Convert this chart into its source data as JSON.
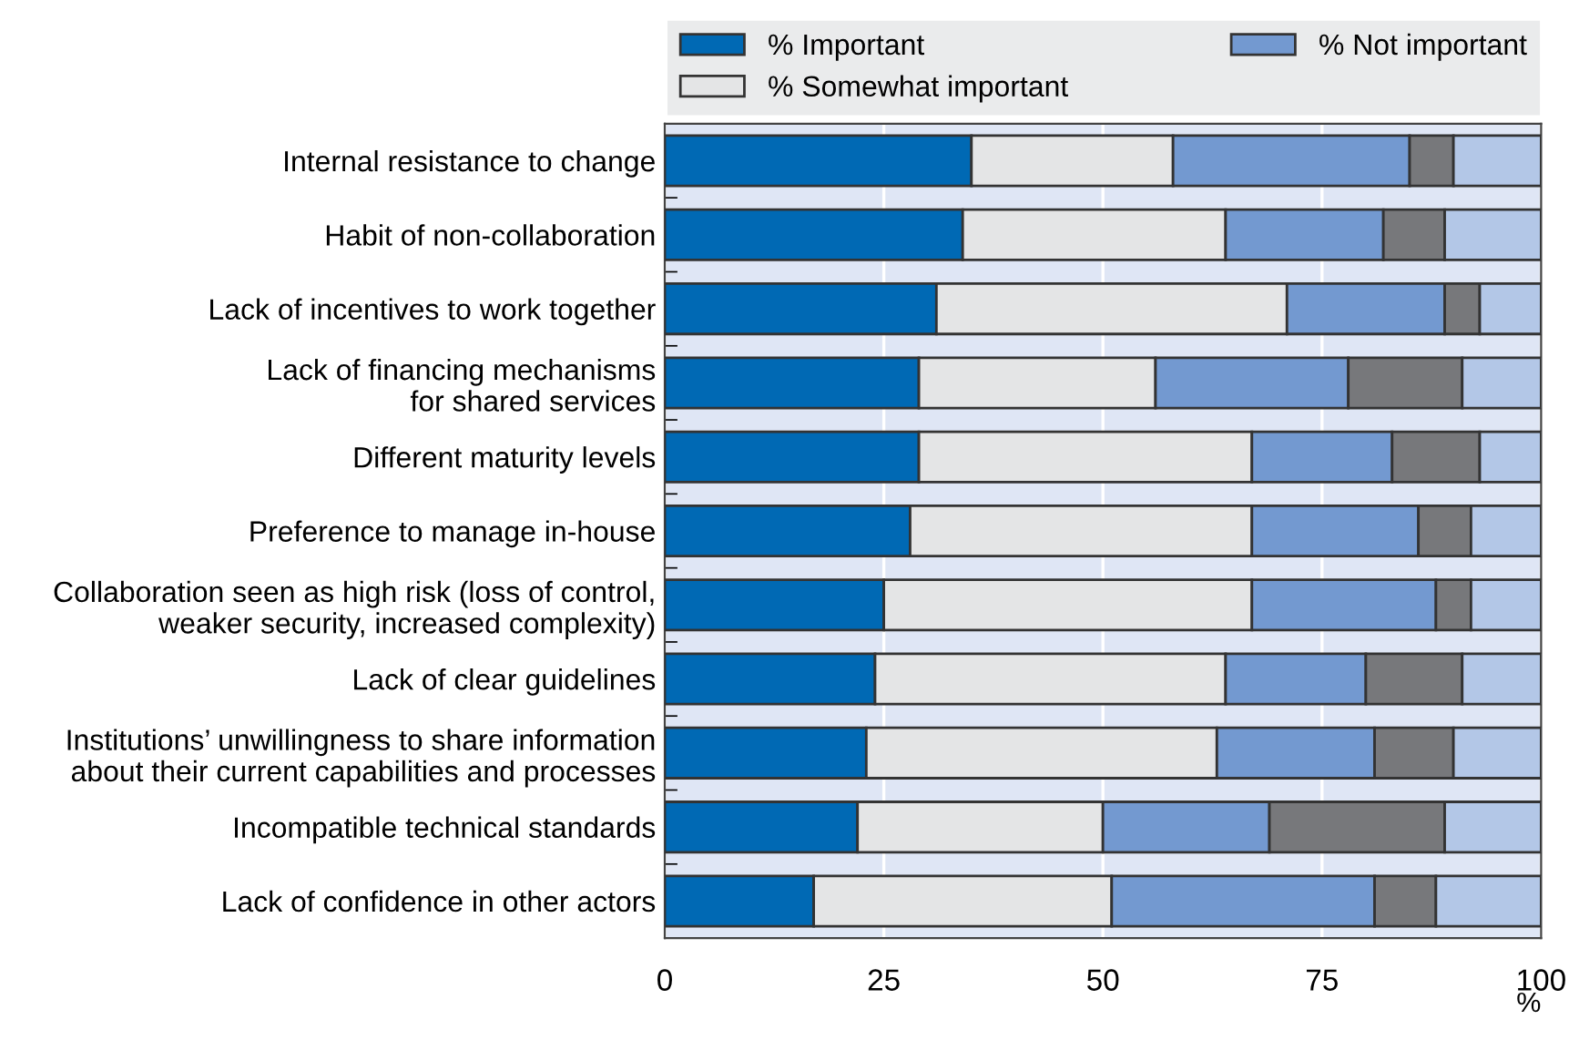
{
  "chart_data": {
    "type": "bar",
    "orientation": "horizontal",
    "stacked": true,
    "categories": [
      "Internal resistance to change",
      "Habit of non-collaboration",
      "Lack of incentives to work together",
      "Lack of financing mechanisms\nfor shared services",
      "Different maturity levels",
      "Preference to manage in-house",
      "Collaboration seen as high risk (loss of control,\nweaker security, increased complexity)",
      "Lack of clear guidelines",
      "Institutions’ unwillingness to share information\nabout their current capabilities and processes",
      "Incompatible technical standards",
      "Lack of confidence in other actors"
    ],
    "series": [
      {
        "name": "% Important",
        "color": "#0069b4",
        "values": [
          35,
          34,
          31,
          29,
          29,
          28,
          25,
          24,
          23,
          22,
          17
        ]
      },
      {
        "name": "% Somewhat important",
        "color": "#e4e5e6",
        "values": [
          23,
          30,
          40,
          27,
          38,
          39,
          42,
          40,
          40,
          28,
          34
        ]
      },
      {
        "name": "% Not important",
        "color": "#7399d0",
        "values": [
          27,
          18,
          18,
          22,
          16,
          19,
          21,
          16,
          18,
          19,
          30
        ]
      },
      {
        "color": "#77787b",
        "values": [
          5,
          7,
          4,
          13,
          10,
          6,
          4,
          11,
          9,
          20,
          7
        ]
      },
      {
        "color": "#b3c7e7",
        "values": [
          10,
          11,
          7,
          9,
          7,
          8,
          8,
          9,
          10,
          11,
          12
        ]
      }
    ],
    "xlabel": "%",
    "xlim": [
      0,
      100
    ],
    "xticks": [
      0,
      25,
      50,
      75,
      100
    ],
    "grid": "x",
    "legend": "top"
  }
}
